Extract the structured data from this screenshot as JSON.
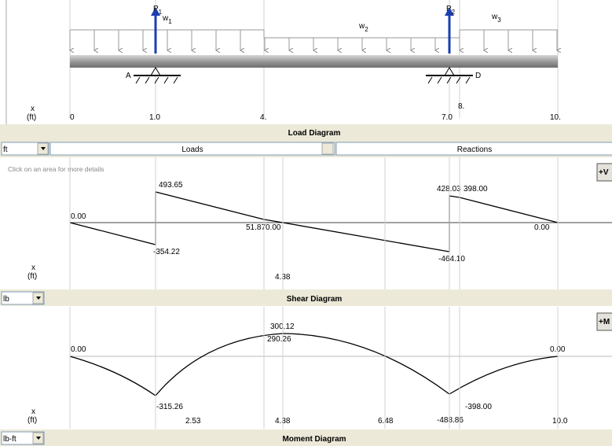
{
  "load_diagram": {
    "load_labels": [
      {
        "symbol": "P",
        "index": "1"
      },
      {
        "symbol": "w",
        "index": "1"
      },
      {
        "symbol": "w",
        "index": "2"
      },
      {
        "symbol": "P",
        "index": "2"
      },
      {
        "symbol": "w",
        "index": "3"
      }
    ],
    "support_labels": [
      "A",
      "D"
    ],
    "axis_label": "x",
    "axis_unit": "(ft)",
    "ticks": [
      "0",
      "1.0",
      "4.",
      "7.0",
      "8.",
      "10."
    ],
    "title": "Load Diagram",
    "unit_select": "ft",
    "loads_field": "Loads",
    "reactions_field": "Reactions"
  },
  "shear_diagram": {
    "hint": "Click on an area for more details",
    "button": "+V",
    "value_labels": [
      "0.00",
      "-354.22",
      "493.65",
      "51.87",
      "0.00",
      "-464.10",
      "428.03",
      "398.00",
      "0.00"
    ],
    "axis_label": "x",
    "axis_unit": "(ft)",
    "ticks": [
      "4.38"
    ],
    "title": "Shear Diagram",
    "unit_select": "lb"
  },
  "moment_diagram": {
    "button": "+M",
    "value_labels": [
      "0.00",
      "-315.26",
      "300.12",
      "290.26",
      "-488.86",
      "-398.00",
      "0.00"
    ],
    "axis_label": "x",
    "axis_unit": "(ft)",
    "ticks": [
      "2.53",
      "4.38",
      "6.48",
      "10.0"
    ],
    "title": "Moment Diagram",
    "unit_select": "lb-ft"
  }
}
